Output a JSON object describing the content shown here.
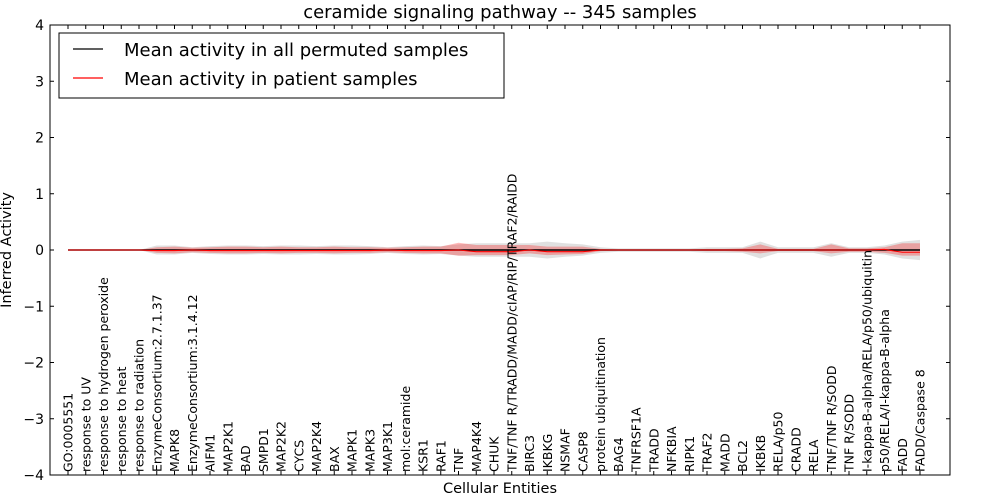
{
  "chart_data": {
    "type": "line",
    "title": "ceramide signaling pathway -- 345 samples",
    "xlabel": "Cellular Entities",
    "ylabel": "Inferred Activity",
    "ylim": [
      -4,
      4
    ],
    "yticks": [
      4,
      3,
      2,
      1,
      0,
      -1,
      -2,
      -3,
      -4
    ],
    "ytick_labels": [
      "4",
      "3",
      "2",
      "1",
      "0",
      "−1",
      "−2",
      "−3",
      "−4"
    ],
    "grid": false,
    "legend_position": "top-left",
    "categories": [
      "GO:0005551",
      "response to UV",
      "response to hydrogen peroxide",
      "response to heat",
      "response to radiation",
      "EnzymeConsortium:2.7.1.37",
      "MAPK8",
      "EnzymeConsortium:3.1.4.12",
      "AIFM1",
      "MAP2K1",
      "BAD",
      "SMPD1",
      "MAP2K2",
      "CYCS",
      "MAP2K4",
      "BAX",
      "MAPK1",
      "MAPK3",
      "MAP3K1",
      "mol:ceramide",
      "KSR1",
      "RAF1",
      "TNF",
      "MAP4K4",
      "CHUK",
      "TNF/TNF R/TRADD/MADD/cIAP/RIP/TRAF2/RAIDD",
      "BIRC3",
      "IKBKG",
      "NSMAF",
      "CASP8",
      "protein ubiquitination",
      "BAG4",
      "TNFRSF1A",
      "TRADD",
      "NFKBIA",
      "RIPK1",
      "TRAF2",
      "MADD",
      "BCL2",
      "IKBKB",
      "RELA/p50",
      "CRADD",
      "RELA",
      "TNF/TNF R/SODD",
      "TNF R/SODD",
      "I-kappa-B-alpha/RELA/p50/ubiquitin",
      "p50/RELA/I-kappa-B-alpha",
      "FADD",
      "FADD/Caspase 8"
    ],
    "series": [
      {
        "name": "Mean activity in all permuted samples",
        "color": "#000000",
        "values": [
          0,
          0,
          0,
          0,
          0,
          0,
          0,
          0,
          0,
          0,
          0,
          0,
          0,
          0,
          0,
          0,
          0,
          0,
          0,
          0,
          0,
          0,
          0,
          0,
          0,
          0,
          0,
          0,
          0,
          0,
          0,
          0,
          0,
          0,
          0,
          0,
          0,
          0,
          0,
          0,
          0,
          0,
          0,
          0,
          0,
          0,
          0,
          0,
          0
        ],
        "band_low": [
          0,
          0,
          0,
          0,
          0,
          -0.08,
          -0.08,
          -0.05,
          -0.07,
          -0.08,
          -0.08,
          -0.07,
          -0.08,
          -0.08,
          -0.07,
          -0.08,
          -0.08,
          -0.07,
          -0.05,
          -0.07,
          -0.08,
          -0.07,
          -0.1,
          -0.12,
          -0.12,
          -0.12,
          -0.12,
          -0.15,
          -0.12,
          -0.1,
          -0.05,
          -0.03,
          -0.03,
          -0.03,
          -0.03,
          -0.03,
          -0.05,
          -0.05,
          -0.05,
          -0.15,
          -0.05,
          -0.05,
          -0.05,
          -0.12,
          -0.05,
          -0.05,
          -0.08,
          -0.15,
          -0.18
        ],
        "band_high": [
          0,
          0,
          0,
          0,
          0,
          0.08,
          0.08,
          0.05,
          0.07,
          0.08,
          0.08,
          0.07,
          0.08,
          0.08,
          0.07,
          0.08,
          0.08,
          0.07,
          0.05,
          0.07,
          0.08,
          0.07,
          0.1,
          0.12,
          0.12,
          0.12,
          0.12,
          0.15,
          0.12,
          0.1,
          0.05,
          0.03,
          0.03,
          0.03,
          0.03,
          0.03,
          0.05,
          0.05,
          0.05,
          0.15,
          0.05,
          0.05,
          0.05,
          0.12,
          0.05,
          0.05,
          0.08,
          0.15,
          0.18
        ]
      },
      {
        "name": "Mean activity in patient samples",
        "color": "#ff0000",
        "values": [
          0,
          0,
          0,
          0,
          0,
          -0.01,
          -0.01,
          0,
          -0.01,
          -0.01,
          -0.01,
          -0.01,
          -0.01,
          -0.01,
          -0.01,
          -0.01,
          -0.01,
          -0.01,
          0,
          -0.01,
          -0.01,
          -0.01,
          0,
          -0.03,
          -0.03,
          -0.03,
          0,
          -0.03,
          -0.03,
          -0.03,
          0,
          0,
          0,
          0,
          0,
          0,
          0,
          0,
          0,
          0,
          0,
          0,
          0,
          0,
          0,
          0,
          0.01,
          -0.04,
          -0.04
        ],
        "band_low": [
          0,
          0,
          0,
          0,
          0,
          -0.05,
          -0.06,
          -0.04,
          -0.05,
          -0.06,
          -0.06,
          -0.05,
          -0.06,
          -0.05,
          -0.05,
          -0.06,
          -0.05,
          -0.05,
          -0.04,
          -0.05,
          -0.06,
          -0.06,
          -0.1,
          -0.09,
          -0.09,
          -0.09,
          -0.06,
          -0.09,
          -0.08,
          -0.07,
          -0.02,
          -0.01,
          -0.01,
          -0.01,
          -0.01,
          -0.01,
          -0.02,
          -0.02,
          -0.03,
          -0.06,
          -0.02,
          -0.02,
          -0.02,
          -0.06,
          -0.03,
          -0.03,
          -0.05,
          -0.1,
          -0.1
        ],
        "band_high": [
          0,
          0,
          0,
          0,
          0,
          0.05,
          0.06,
          0.04,
          0.05,
          0.06,
          0.06,
          0.05,
          0.06,
          0.05,
          0.05,
          0.06,
          0.05,
          0.05,
          0.04,
          0.05,
          0.06,
          0.06,
          0.13,
          0.09,
          0.09,
          0.09,
          0.09,
          0.06,
          0.06,
          0.06,
          0.02,
          0.01,
          0.01,
          0.01,
          0.01,
          0.01,
          0.02,
          0.02,
          0.03,
          0.1,
          0.02,
          0.02,
          0.02,
          0.1,
          0.03,
          0.03,
          0.05,
          0.12,
          0.12
        ]
      }
    ]
  }
}
